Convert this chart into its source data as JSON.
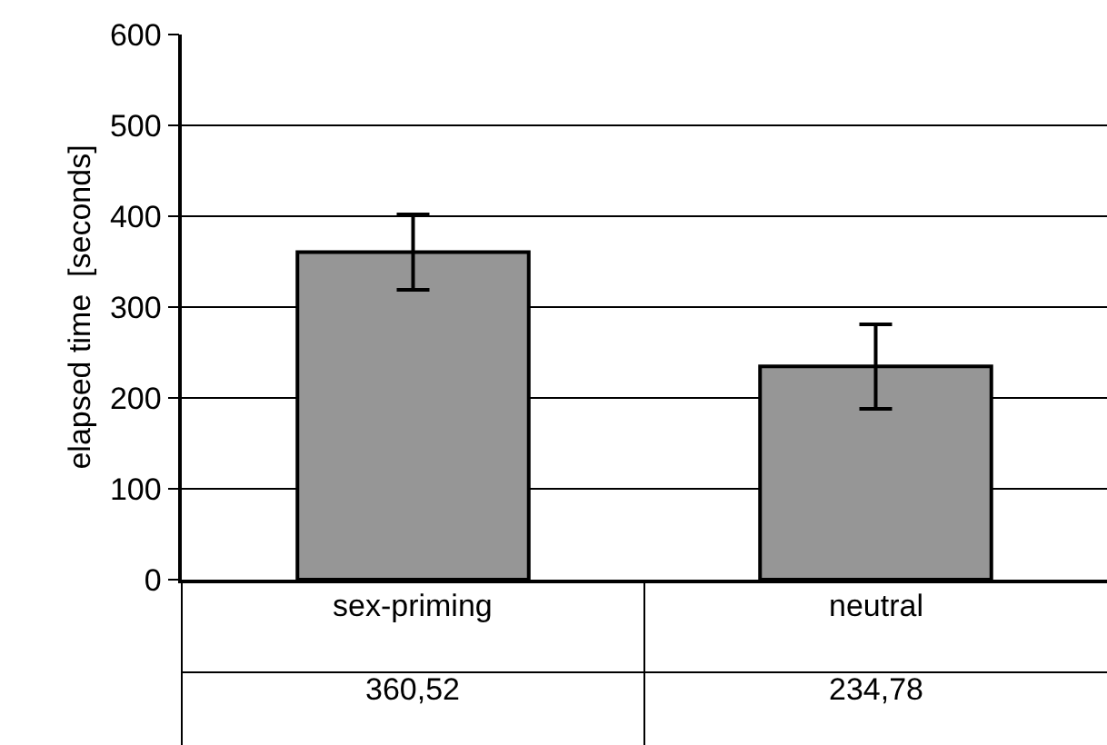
{
  "chart_data": {
    "type": "bar",
    "ylabel": "elapsed time  [seconds]",
    "categories": [
      "sex-priming",
      "neutral"
    ],
    "values": [
      360.52,
      234.78
    ],
    "value_labels": [
      "360,52",
      "234,78"
    ],
    "errors": [
      [
        319,
        402
      ],
      [
        188,
        281
      ]
    ],
    "color": "#969696",
    "ylim": [
      0,
      600
    ],
    "yticks": [
      0,
      100,
      200,
      300,
      400,
      500,
      600
    ],
    "grid": "y",
    "legend": false
  }
}
